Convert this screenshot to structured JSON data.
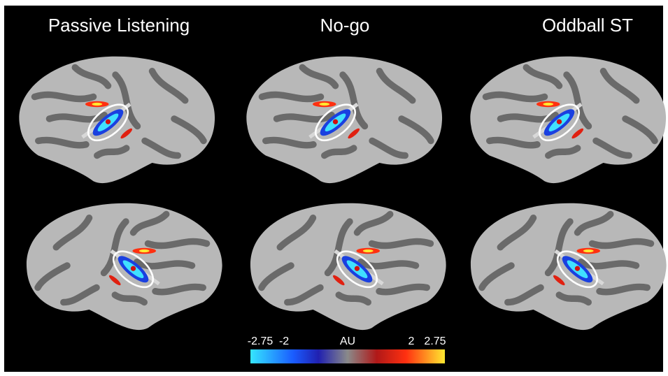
{
  "panels": [
    {
      "title": "Passive Listening"
    },
    {
      "title": "No-go"
    },
    {
      "title": "Oddball ST"
    }
  ],
  "colorbar": {
    "label": "AU",
    "lim": [
      -2.75,
      2.75
    ],
    "ticks": [
      -2.75,
      -2,
      2,
      2.75
    ]
  }
}
